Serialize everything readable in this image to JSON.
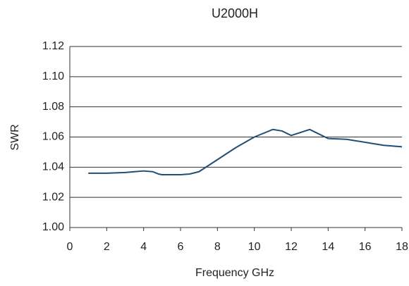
{
  "chart_data": {
    "type": "line",
    "title": "U2000H",
    "xlabel": "Frequency GHz",
    "ylabel": "SWR",
    "x": [
      1,
      2,
      3,
      3.5,
      4,
      4.5,
      4.8,
      5,
      6,
      6.5,
      7,
      8,
      9,
      10,
      11,
      11.5,
      12,
      13,
      14,
      15,
      16,
      17,
      18
    ],
    "series": [
      {
        "name": "U2000H",
        "color": "#1f4e79",
        "values": [
          1.036,
          1.036,
          1.0365,
          1.037,
          1.0375,
          1.037,
          1.0355,
          1.035,
          1.035,
          1.0355,
          1.037,
          1.045,
          1.053,
          1.06,
          1.065,
          1.064,
          1.061,
          1.065,
          1.059,
          1.0585,
          1.0565,
          1.0545,
          1.0535
        ]
      }
    ],
    "xlim": [
      0,
      18
    ],
    "xticks": [
      0,
      2,
      4,
      6,
      8,
      10,
      12,
      14,
      16,
      18
    ],
    "ylim": [
      1.0,
      1.12
    ],
    "yticks": [
      {
        "value": 1.0,
        "label": "1.00"
      },
      1.02,
      1.04,
      1.06,
      1.08,
      {
        "value": 1.1,
        "label": "1.10"
      },
      1.12
    ],
    "grid": true
  }
}
